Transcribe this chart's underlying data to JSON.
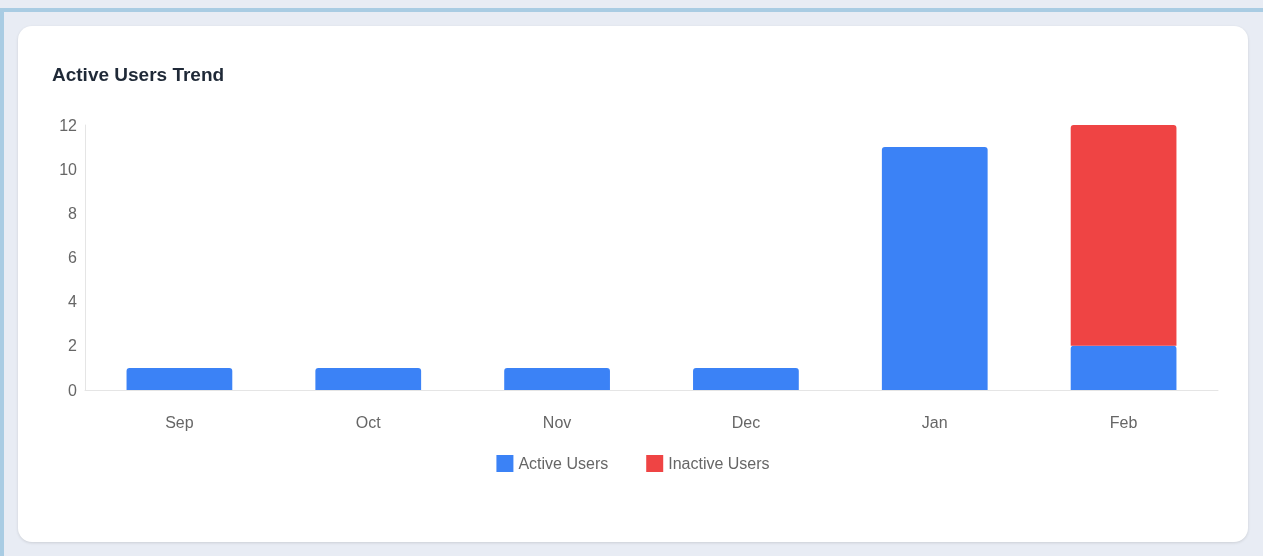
{
  "chart_data": {
    "type": "bar",
    "title": "Active Users Trend",
    "categories": [
      "Sep",
      "Oct",
      "Nov",
      "Dec",
      "Jan",
      "Feb"
    ],
    "stacked": true,
    "series": [
      {
        "name": "Active Users",
        "color": "#3b82f6",
        "values": [
          1,
          1,
          1,
          1,
          11,
          2
        ]
      },
      {
        "name": "Inactive Users",
        "color": "#ef4444",
        "values": [
          null,
          null,
          null,
          null,
          null,
          10
        ]
      }
    ],
    "ylim": [
      0,
      12
    ],
    "yticks": [
      0,
      2,
      4,
      6,
      8,
      10,
      12
    ],
    "grid": false,
    "legend": "bottom"
  }
}
